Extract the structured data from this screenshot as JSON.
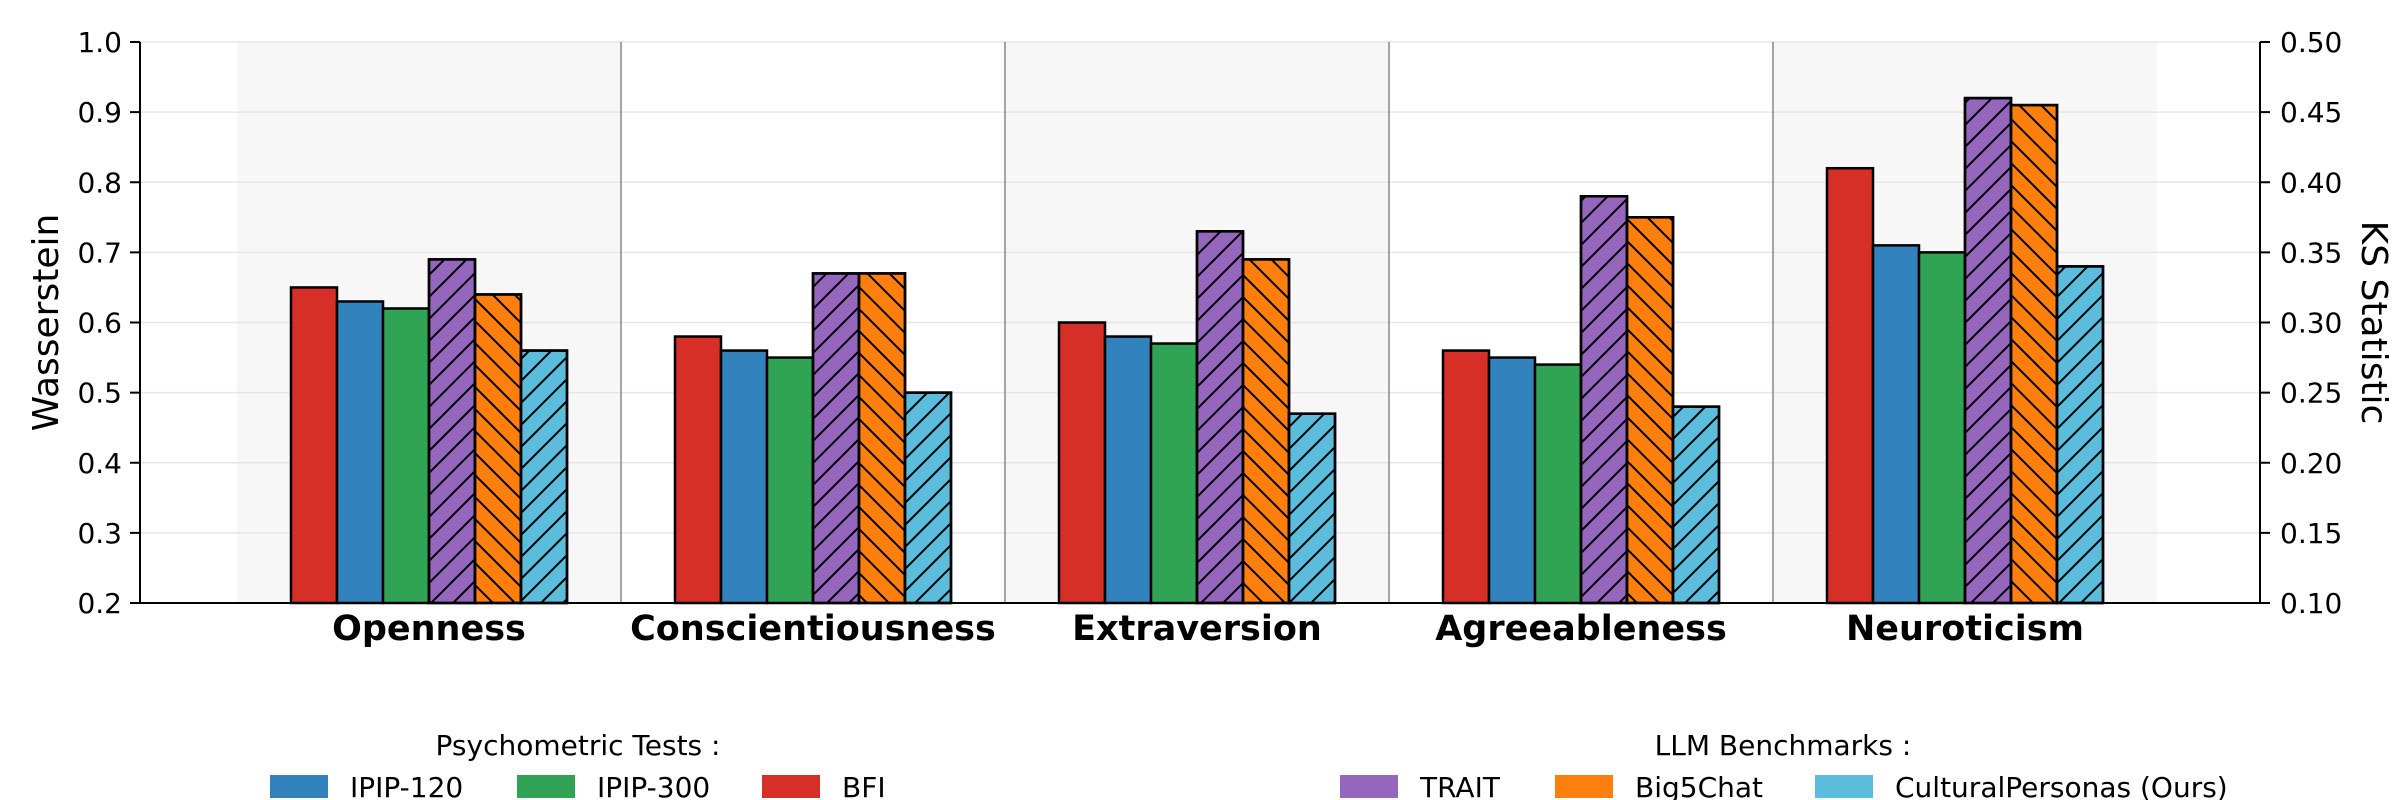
{
  "chart_data": {
    "type": "bar",
    "categories": [
      "Openness",
      "Conscientiousness",
      "Extraversion",
      "Agreeableness",
      "Neuroticism"
    ],
    "ylabel": "Wasserstein",
    "ylabel_right": "KS Statistic",
    "ylim": [
      0.2,
      1.0
    ],
    "ylim_right": [
      0.1,
      0.5
    ],
    "yticks": [
      "0.2",
      "0.3",
      "0.4",
      "0.5",
      "0.6",
      "0.7",
      "0.8",
      "0.9",
      "1.0"
    ],
    "yticks_right": [
      "0.10",
      "0.15",
      "0.20",
      "0.25",
      "0.30",
      "0.35",
      "0.40",
      "0.45",
      "0.50"
    ],
    "grid": true,
    "series": [
      {
        "name": "BFI",
        "group": "psychometric",
        "color": "#d62f27",
        "hatch": "none",
        "values": [
          0.65,
          0.58,
          0.6,
          0.56,
          0.82
        ]
      },
      {
        "name": "IPIP-120",
        "group": "psychometric",
        "color": "#3182bd",
        "hatch": "none",
        "values": [
          0.63,
          0.56,
          0.58,
          0.55,
          0.71
        ]
      },
      {
        "name": "IPIP-300",
        "group": "psychometric",
        "color": "#31a354",
        "hatch": "none",
        "values": [
          0.62,
          0.55,
          0.57,
          0.54,
          0.7
        ]
      },
      {
        "name": "TRAIT",
        "group": "llm",
        "color": "#9467bd",
        "hatch": "forward",
        "values": [
          0.69,
          0.67,
          0.73,
          0.78,
          0.92
        ]
      },
      {
        "name": "Big5Chat",
        "group": "llm",
        "color": "#ff7f0e",
        "hatch": "backward",
        "values": [
          0.64,
          0.67,
          0.69,
          0.75,
          0.91
        ]
      },
      {
        "name": "CulturalPersonas (Ours)",
        "group": "llm",
        "color": "#5bbcdc",
        "hatch": "forward",
        "values": [
          0.56,
          0.5,
          0.47,
          0.48,
          0.68
        ]
      }
    ],
    "legend": {
      "placement": "bottom",
      "groups": [
        {
          "title": "Psychometric Tests :",
          "entries": [
            "IPIP-120",
            "IPIP-300",
            "BFI"
          ]
        },
        {
          "title": "LLM Benchmarks :",
          "entries": [
            "TRAIT",
            "Big5Chat",
            "CulturalPersonas (Ours)"
          ]
        }
      ]
    }
  }
}
